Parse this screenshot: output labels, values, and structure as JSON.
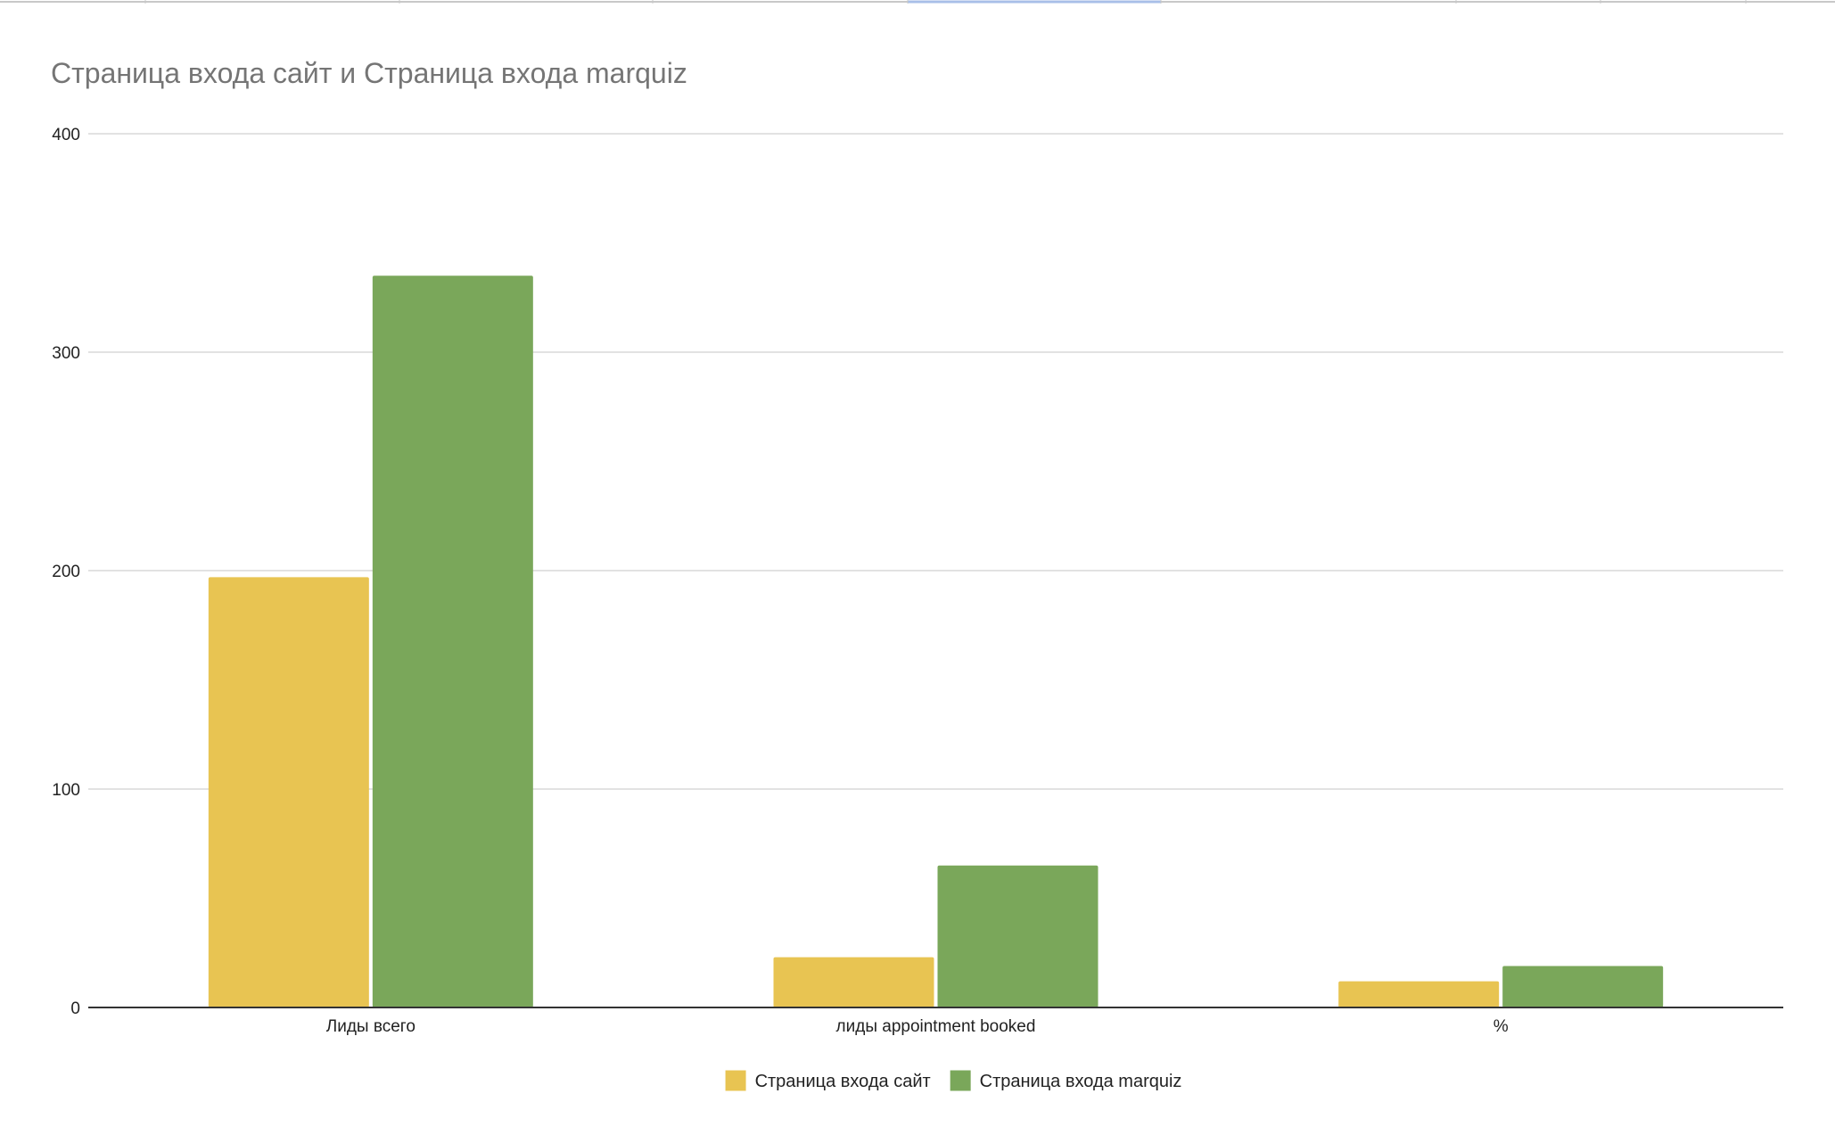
{
  "chart_data": {
    "type": "bar",
    "title": "Страница входа сайт и Страница входа marquiz",
    "xlabel": "",
    "ylabel": "",
    "categories": [
      "Лиды всего",
      "лиды appointment booked",
      "%"
    ],
    "series": [
      {
        "name": "Страница входа сайт",
        "color": "#e8c452",
        "values": [
          197,
          23,
          12
        ]
      },
      {
        "name": "Страница входа marquiz",
        "color": "#7aa75a",
        "values": [
          335,
          65,
          19
        ]
      }
    ],
    "ylim": [
      0,
      400
    ],
    "yticks": [
      "0",
      "100",
      "200",
      "300",
      "400"
    ],
    "grid": true,
    "legend_position": "bottom"
  }
}
